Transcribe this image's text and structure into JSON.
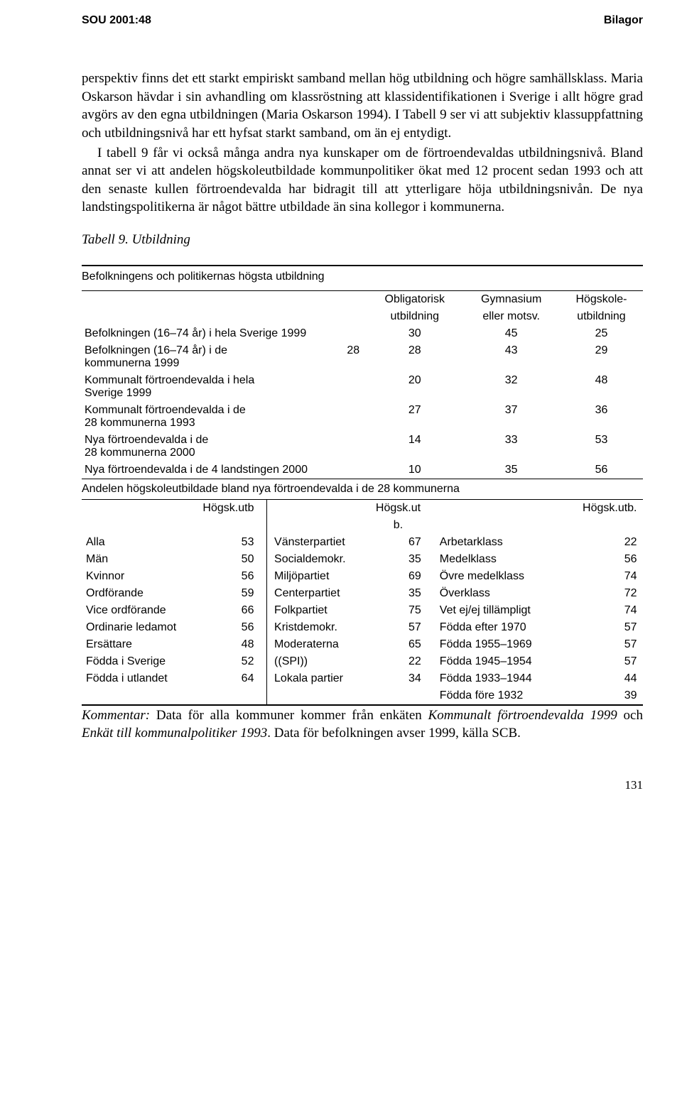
{
  "header": {
    "left": "SOU 2001:48",
    "right": "Bilagor"
  },
  "para1": "perspektiv finns det ett starkt empiriskt samband mellan hög utbildning och högre samhällsklass. Maria Oskarson hävdar i sin avhandling om klassröstning att klassidentifikationen i Sverige i allt högre grad avgörs av den egna utbildningen (Maria Oskarson 1994). I Tabell 9 ser vi att subjektiv klassuppfattning och utbildningsnivå har ett hyfsat starkt samband, om än ej entydigt.",
  "para2": "I tabell 9 får vi också många andra nya kunskaper om de förtroendevaldas utbildningsnivå. Bland annat ser vi att andelen högskoleutbildade kommunpolitiker ökat med 12 procent sedan 1993 och att den senaste kullen förtroendevalda har bidragit till att ytterligare höja utbildningsnivån. De nya landstingspolitikerna är något bättre utbildade än sina kollegor i kommunerna.",
  "table_title": "Tabell 9. Utbildning",
  "t1": {
    "caption": "Befolkningens och politikernas högsta utbildning",
    "head": {
      "c1": "Obligatorisk",
      "c1b": "utbildning",
      "c2": "Gymnasium",
      "c2b": "eller motsv.",
      "c3": "Högskole-",
      "c3b": "utbildning"
    },
    "rows": [
      {
        "label": "Befolkningen (16–74 år) i hela Sverige 1999",
        "extra": "",
        "a": "30",
        "b": "45",
        "c": "25"
      },
      {
        "label": "Befolkningen (16–74 år) i de",
        "label2": "kommunerna 1999",
        "extra": "28",
        "a": "28",
        "b": "43",
        "c": "29"
      },
      {
        "label": "Kommunalt förtroendevalda i hela",
        "label2": "Sverige 1999",
        "extra": "",
        "a": "20",
        "b": "32",
        "c": "48"
      },
      {
        "label": "Kommunalt förtroendevalda i de",
        "label2": "28 kommunerna 1993",
        "extra": "",
        "a": "27",
        "b": "37",
        "c": "36"
      },
      {
        "label": "Nya förtroendevalda i de",
        "label2": "28 kommunerna 2000",
        "extra": "",
        "a": "14",
        "b": "33",
        "c": "53"
      },
      {
        "label": "Nya förtroendevalda i de 4 landstingen 2000",
        "extra": "",
        "a": "10",
        "b": "35",
        "c": "56"
      }
    ]
  },
  "subcaption": "Andelen högskoleutbildade bland nya förtroendevalda i de 28 kommunerna",
  "t2": {
    "head": {
      "h1": "Högsk.utb",
      "h2": "Högsk.ut",
      "h2b": "b.",
      "h3": "Högsk.utb."
    },
    "rows": [
      {
        "a": "Alla",
        "av": "53",
        "b": "Vänsterpartiet",
        "bv": "67",
        "c": "Arbetarklass",
        "cv": "22"
      },
      {
        "a": "Män",
        "av": "50",
        "b": "Socialdemokr.",
        "bv": "35",
        "c": "Medelklass",
        "cv": "56"
      },
      {
        "a": "Kvinnor",
        "av": "56",
        "b": "Miljöpartiet",
        "bv": "69",
        "c": "Övre medelklass",
        "cv": "74"
      },
      {
        "a": "Ordförande",
        "av": "59",
        "b": "Centerpartiet",
        "bv": "35",
        "c": "Överklass",
        "cv": "72"
      },
      {
        "a": "Vice ordförande",
        "av": "66",
        "b": "Folkpartiet",
        "bv": "75",
        "c": "Vet ej/ej tillämpligt",
        "cv": "74"
      },
      {
        "a": "Ordinarie ledamot",
        "av": "56",
        "b": "Kristdemokr.",
        "bv": "57",
        "c": "Födda efter 1970",
        "cv": "57"
      },
      {
        "a": "Ersättare",
        "av": "48",
        "b": "Moderaterna",
        "bv": "65",
        "c": "Födda 1955–1969",
        "cv": "57"
      },
      {
        "a": "Födda i Sverige",
        "av": "52",
        "b": "((SPI))",
        "bv": "22",
        "c": "Födda 1945–1954",
        "cv": "57"
      },
      {
        "a": "Födda i utlandet",
        "av": "64",
        "b": "Lokala partier",
        "bv": "34",
        "c": "Födda 1933–1944",
        "cv": "44"
      },
      {
        "a": "",
        "av": "",
        "b": "",
        "bv": "",
        "c": "Födda före 1932",
        "cv": "39"
      }
    ]
  },
  "comment": {
    "label": "Kommentar:",
    "t1": " Data för alla kommuner kommer från enkäten ",
    "it1": "Kommunalt förtroendevalda 1999",
    "t2": " och ",
    "it2": "Enkät till kommunalpolitiker 1993",
    "t3": ". Data för befolkningen avser 1999, källa SCB."
  },
  "pagenum": "131"
}
